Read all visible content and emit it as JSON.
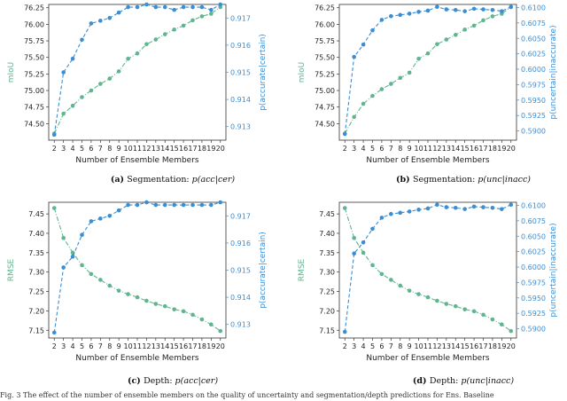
{
  "colors": {
    "primary": "#5fb58f",
    "secondary": "#3a8ed3"
  },
  "footer_text": "Fig. 3 The effect of the number of ensemble members on the quality of uncertainty and segmentation/depth predictions for Ens. Baseline",
  "chart_data": [
    {
      "type": "line",
      "caption_label": "(a)",
      "caption_text": "Segmentation:",
      "caption_math": "p(acc|cer)",
      "xlabel": "Number of Ensemble Members",
      "ylabel_left": "mIoU",
      "ylabel_right": "p(accurate|certain)",
      "x": [
        2,
        3,
        4,
        5,
        6,
        7,
        8,
        9,
        10,
        11,
        12,
        13,
        14,
        15,
        16,
        17,
        18,
        19,
        20
      ],
      "xticks": [
        "2",
        "3",
        "4",
        "5",
        "6",
        "7",
        "8",
        "9",
        "10",
        "11",
        "12",
        "13",
        "14",
        "15",
        "16",
        "17",
        "18",
        "19",
        "20"
      ],
      "left_ylim": [
        74.25,
        76.3
      ],
      "left_yticks": [
        "74.50",
        "74.75",
        "75.00",
        "75.25",
        "75.50",
        "75.75",
        "76.00",
        "76.25"
      ],
      "right_ylim": [
        0.9125,
        0.9175
      ],
      "right_yticks": [
        "0.913",
        "0.914",
        "0.915",
        "0.916",
        "0.917"
      ],
      "series": [
        {
          "axis": "left",
          "style": "dash-dot",
          "color": "#5fb58f",
          "values": [
            74.35,
            74.65,
            74.77,
            74.9,
            75.0,
            75.1,
            75.18,
            75.29,
            75.48,
            75.56,
            75.7,
            75.77,
            75.85,
            75.92,
            75.98,
            76.06,
            76.12,
            76.16,
            76.26
          ]
        },
        {
          "axis": "right",
          "style": "dashed",
          "color": "#3a8ed3",
          "values": [
            0.9127,
            0.915,
            0.9155,
            0.9162,
            0.9168,
            0.9169,
            0.917,
            0.9172,
            0.9174,
            0.9174,
            0.9175,
            0.9174,
            0.9174,
            0.9173,
            0.9174,
            0.9174,
            0.9174,
            0.9173,
            0.9175
          ]
        }
      ]
    },
    {
      "type": "line",
      "caption_label": "(b)",
      "caption_text": "Segmentation:",
      "caption_math": "p(unc|inacc)",
      "xlabel": "Number of Ensemble Members",
      "ylabel_left": "mIoU",
      "ylabel_right": "p(uncertain|inaccurate)",
      "x": [
        2,
        3,
        4,
        5,
        6,
        7,
        8,
        9,
        10,
        11,
        12,
        13,
        14,
        15,
        16,
        17,
        18,
        19,
        20
      ],
      "xticks": [
        "2",
        "3",
        "4",
        "5",
        "6",
        "7",
        "8",
        "9",
        "10",
        "11",
        "12",
        "13",
        "14",
        "15",
        "16",
        "17",
        "18",
        "19",
        "20"
      ],
      "left_ylim": [
        74.25,
        76.3
      ],
      "left_yticks": [
        "74.50",
        "74.75",
        "75.00",
        "75.25",
        "75.50",
        "75.75",
        "76.00",
        "76.25"
      ],
      "right_ylim": [
        0.5885,
        0.6105
      ],
      "right_yticks": [
        "0.5900",
        "0.5925",
        "0.5950",
        "0.5975",
        "0.6000",
        "0.6025",
        "0.6050",
        "0.6075",
        "0.6100"
      ],
      "series": [
        {
          "axis": "left",
          "style": "dash-dot",
          "color": "#5fb58f",
          "values": [
            74.35,
            74.6,
            74.8,
            74.92,
            75.02,
            75.1,
            75.19,
            75.27,
            75.48,
            75.56,
            75.7,
            75.77,
            75.84,
            75.92,
            75.98,
            76.06,
            76.12,
            76.16,
            76.26
          ]
        },
        {
          "axis": "right",
          "style": "dashed",
          "color": "#3a8ed3",
          "values": [
            0.5895,
            0.602,
            0.604,
            0.6063,
            0.608,
            0.6086,
            0.6088,
            0.609,
            0.6093,
            0.6095,
            0.6101,
            0.6097,
            0.6096,
            0.6094,
            0.6098,
            0.6097,
            0.6096,
            0.6094,
            0.6101
          ]
        }
      ]
    },
    {
      "type": "line",
      "caption_label": "(c)",
      "caption_text": "Depth:",
      "caption_math": "p(acc|cer)",
      "xlabel": "Number of Ensemble Members",
      "ylabel_left": "RMSE",
      "ylabel_right": "p(accurate|certain)",
      "x": [
        2,
        3,
        4,
        5,
        6,
        7,
        8,
        9,
        10,
        11,
        12,
        13,
        14,
        15,
        16,
        17,
        18,
        19,
        20
      ],
      "xticks": [
        "2",
        "3",
        "4",
        "5",
        "6",
        "7",
        "8",
        "9",
        "10",
        "11",
        "12",
        "13",
        "14",
        "15",
        "16",
        "17",
        "18",
        "19",
        "20"
      ],
      "left_ylim": [
        7.13,
        7.48
      ],
      "left_yticks": [
        "7.15",
        "7.20",
        "7.25",
        "7.30",
        "7.35",
        "7.40",
        "7.45"
      ],
      "right_ylim": [
        0.9125,
        0.9175
      ],
      "right_yticks": [
        "0.913",
        "0.914",
        "0.915",
        "0.916",
        "0.917"
      ],
      "series": [
        {
          "axis": "left",
          "style": "dash-dot",
          "color": "#5fb58f",
          "values": [
            7.465,
            7.388,
            7.35,
            7.318,
            7.295,
            7.28,
            7.265,
            7.252,
            7.243,
            7.235,
            7.226,
            7.218,
            7.212,
            7.204,
            7.199,
            7.19,
            7.178,
            7.165,
            7.148
          ]
        },
        {
          "axis": "right",
          "style": "dashed",
          "color": "#3a8ed3",
          "values": [
            0.9127,
            0.9151,
            0.9155,
            0.9163,
            0.9168,
            0.9169,
            0.917,
            0.9172,
            0.9174,
            0.9174,
            0.9175,
            0.9174,
            0.9174,
            0.9174,
            0.9174,
            0.9174,
            0.9174,
            0.9174,
            0.9175
          ]
        }
      ]
    },
    {
      "type": "line",
      "caption_label": "(d)",
      "caption_text": "Depth:",
      "caption_math": "p(unc|inacc)",
      "xlabel": "Number of Ensemble Members",
      "ylabel_left": "RMSE",
      "ylabel_right": "p(uncertain|inaccurate)",
      "x": [
        2,
        3,
        4,
        5,
        6,
        7,
        8,
        9,
        10,
        11,
        12,
        13,
        14,
        15,
        16,
        17,
        18,
        19,
        20
      ],
      "xticks": [
        "2",
        "3",
        "4",
        "5",
        "6",
        "7",
        "8",
        "9",
        "10",
        "11",
        "12",
        "13",
        "14",
        "15",
        "16",
        "17",
        "18",
        "19",
        "20"
      ],
      "left_ylim": [
        7.13,
        7.48
      ],
      "left_yticks": [
        "7.15",
        "7.20",
        "7.25",
        "7.30",
        "7.35",
        "7.40",
        "7.45"
      ],
      "right_ylim": [
        0.5885,
        0.6105
      ],
      "right_yticks": [
        "0.5900",
        "0.5925",
        "0.5950",
        "0.5975",
        "0.6000",
        "0.6025",
        "0.6050",
        "0.6075",
        "0.6100"
      ],
      "series": [
        {
          "axis": "left",
          "style": "dash-dot",
          "color": "#5fb58f",
          "values": [
            7.465,
            7.388,
            7.35,
            7.318,
            7.295,
            7.28,
            7.265,
            7.252,
            7.243,
            7.235,
            7.226,
            7.218,
            7.212,
            7.204,
            7.199,
            7.19,
            7.178,
            7.165,
            7.148
          ]
        },
        {
          "axis": "right",
          "style": "dashed",
          "color": "#3a8ed3",
          "values": [
            0.5895,
            0.6022,
            0.604,
            0.6062,
            0.608,
            0.6086,
            0.6088,
            0.609,
            0.6093,
            0.6095,
            0.6101,
            0.6097,
            0.6096,
            0.6094,
            0.6098,
            0.6097,
            0.6096,
            0.6094,
            0.6101
          ]
        }
      ]
    }
  ]
}
